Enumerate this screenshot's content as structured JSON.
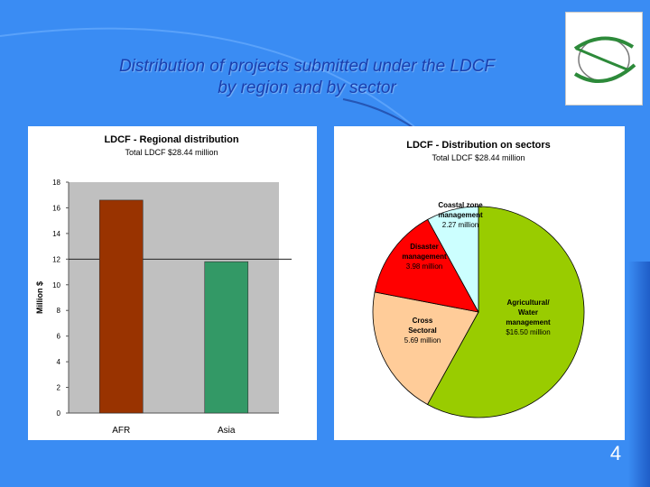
{
  "slide": {
    "title_line1": "Distribution of projects submitted under the LDCF",
    "title_line2": "by region and by sector",
    "page_number": "4",
    "colors": {
      "background": "#3a8cf3",
      "title": "#1a3fae",
      "bar_afr": "#993300",
      "bar_asia": "#339966",
      "plot_bg": "#c0c0c0",
      "pie_agri": "#99cc00",
      "pie_cross": "#ffcc99",
      "pie_disaster": "#ff0000",
      "pie_coastal": "#ccffff"
    },
    "logo_icon": "globe-orbit-icon"
  },
  "chart_data": [
    {
      "type": "bar",
      "title": "LDCF - Regional distribution",
      "subtitle": "Total LDCF $28.44 million",
      "ylabel": "Million $",
      "xlabel": "",
      "categories": [
        "AFR",
        "Asia"
      ],
      "values": [
        16.6,
        11.8
      ],
      "ylim": [
        0,
        18
      ],
      "yticks": [
        0,
        2,
        4,
        6,
        8,
        10,
        12,
        14,
        16,
        18
      ],
      "ytick_labels": [
        "0",
        "2",
        "4",
        "6",
        "8",
        "10",
        "12",
        "14",
        "16",
        "18"
      ],
      "reference_line": 12,
      "colors": [
        "#993300",
        "#339966"
      ],
      "grid": false
    },
    {
      "type": "pie",
      "title": "LDCF - Distribution on sectors",
      "subtitle": "Total LDCF $28.44 million",
      "slices": [
        {
          "name": "Agricultural/ Water management",
          "value": 16.5,
          "label_lines": [
            "Agricultural/",
            "Water",
            "management"
          ],
          "value_label": "$16.50 million",
          "color": "#99cc00"
        },
        {
          "name": "Cross Sectoral",
          "value": 5.69,
          "label_lines": [
            "Cross",
            "Sectoral"
          ],
          "value_label": "5.69 million",
          "color": "#ffcc99"
        },
        {
          "name": "Disaster management",
          "value": 3.98,
          "label_lines": [
            "Disaster",
            "management"
          ],
          "value_label": "3.98 million",
          "color": "#ff0000"
        },
        {
          "name": "Coastal zone management",
          "value": 2.27,
          "label_lines": [
            "Coastal zone",
            "management"
          ],
          "value_label": "2.27 million",
          "color": "#ccffff"
        }
      ]
    }
  ]
}
